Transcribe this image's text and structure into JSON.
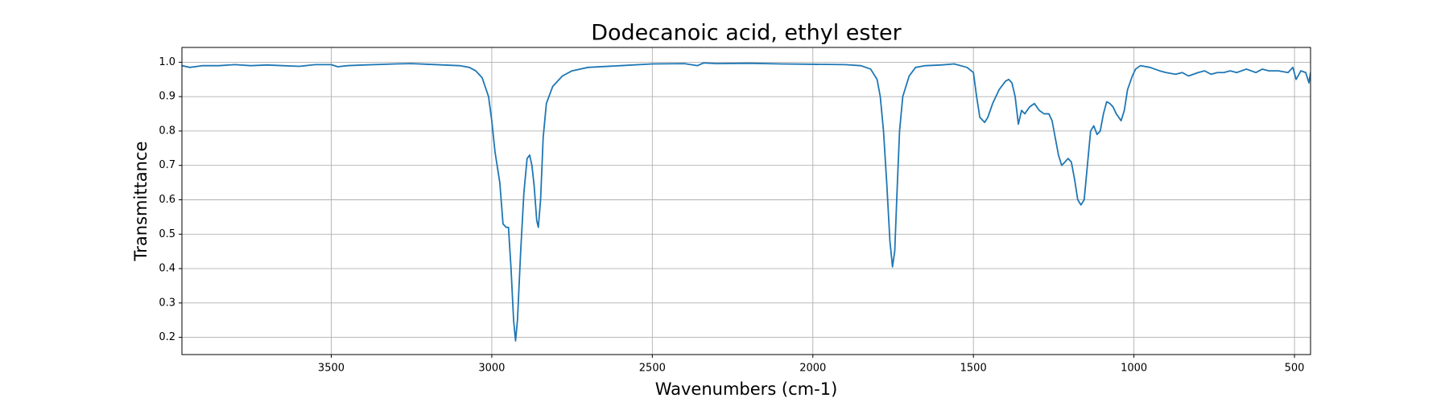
{
  "chart_data": {
    "type": "line",
    "title": "Dodecanoic acid, ethyl ester",
    "xlabel": "Wavenumbers (cm-1)",
    "ylabel": "Transmittance",
    "x": [
      3965,
      3940,
      3900,
      3850,
      3800,
      3750,
      3700,
      3650,
      3600,
      3550,
      3500,
      3480,
      3450,
      3400,
      3300,
      3250,
      3200,
      3150,
      3100,
      3070,
      3050,
      3030,
      3010,
      3000,
      2990,
      2975,
      2965,
      2955,
      2948,
      2940,
      2932,
      2926,
      2920,
      2910,
      2900,
      2890,
      2882,
      2875,
      2868,
      2860,
      2855,
      2848,
      2840,
      2830,
      2810,
      2780,
      2750,
      2700,
      2600,
      2500,
      2400,
      2360,
      2340,
      2300,
      2200,
      2100,
      2000,
      1900,
      1850,
      1820,
      1800,
      1790,
      1780,
      1770,
      1760,
      1752,
      1745,
      1738,
      1730,
      1720,
      1700,
      1680,
      1650,
      1600,
      1560,
      1520,
      1500,
      1490,
      1480,
      1465,
      1455,
      1440,
      1420,
      1400,
      1390,
      1380,
      1370,
      1360,
      1350,
      1340,
      1325,
      1310,
      1295,
      1280,
      1265,
      1255,
      1245,
      1235,
      1225,
      1215,
      1205,
      1195,
      1185,
      1175,
      1165,
      1155,
      1145,
      1135,
      1125,
      1115,
      1105,
      1095,
      1085,
      1075,
      1065,
      1055,
      1040,
      1030,
      1020,
      1005,
      995,
      980,
      950,
      920,
      900,
      870,
      850,
      830,
      800,
      780,
      760,
      740,
      720,
      700,
      680,
      650,
      620,
      600,
      580,
      550,
      520,
      505,
      495,
      480,
      465,
      455,
      450
    ],
    "values": [
      0.99,
      0.985,
      0.99,
      0.99,
      0.993,
      0.99,
      0.992,
      0.99,
      0.988,
      0.993,
      0.993,
      0.987,
      0.99,
      0.992,
      0.995,
      0.996,
      0.994,
      0.992,
      0.99,
      0.985,
      0.975,
      0.955,
      0.9,
      0.83,
      0.74,
      0.65,
      0.53,
      0.52,
      0.52,
      0.4,
      0.25,
      0.19,
      0.25,
      0.45,
      0.62,
      0.72,
      0.73,
      0.7,
      0.64,
      0.54,
      0.52,
      0.6,
      0.78,
      0.88,
      0.93,
      0.96,
      0.975,
      0.985,
      0.99,
      0.995,
      0.996,
      0.99,
      0.998,
      0.996,
      0.997,
      0.995,
      0.994,
      0.993,
      0.99,
      0.98,
      0.95,
      0.9,
      0.8,
      0.65,
      0.48,
      0.405,
      0.45,
      0.62,
      0.8,
      0.9,
      0.96,
      0.985,
      0.99,
      0.992,
      0.995,
      0.985,
      0.97,
      0.9,
      0.84,
      0.825,
      0.84,
      0.88,
      0.92,
      0.945,
      0.95,
      0.94,
      0.9,
      0.82,
      0.86,
      0.85,
      0.87,
      0.88,
      0.86,
      0.85,
      0.85,
      0.83,
      0.78,
      0.73,
      0.7,
      0.71,
      0.72,
      0.71,
      0.66,
      0.6,
      0.585,
      0.6,
      0.7,
      0.8,
      0.815,
      0.79,
      0.8,
      0.85,
      0.885,
      0.88,
      0.87,
      0.85,
      0.83,
      0.86,
      0.92,
      0.96,
      0.98,
      0.99,
      0.985,
      0.975,
      0.97,
      0.965,
      0.97,
      0.96,
      0.97,
      0.975,
      0.965,
      0.97,
      0.97,
      0.975,
      0.97,
      0.98,
      0.97,
      0.98,
      0.975,
      0.975,
      0.97,
      0.985,
      0.95,
      0.975,
      0.97,
      0.94,
      0.97
    ],
    "color": "#1f77b4",
    "xlim": [
      3965,
      450
    ],
    "xticks": [
      3500,
      3000,
      2500,
      2000,
      1500,
      1000,
      500
    ],
    "ylim": [
      0.15,
      1.043
    ],
    "yticks": [
      0.2,
      0.3,
      0.4,
      0.5,
      0.6,
      0.7,
      0.8,
      0.9,
      {
        "value": 1,
        "label": "1.0"
      }
    ],
    "grid": true
  }
}
